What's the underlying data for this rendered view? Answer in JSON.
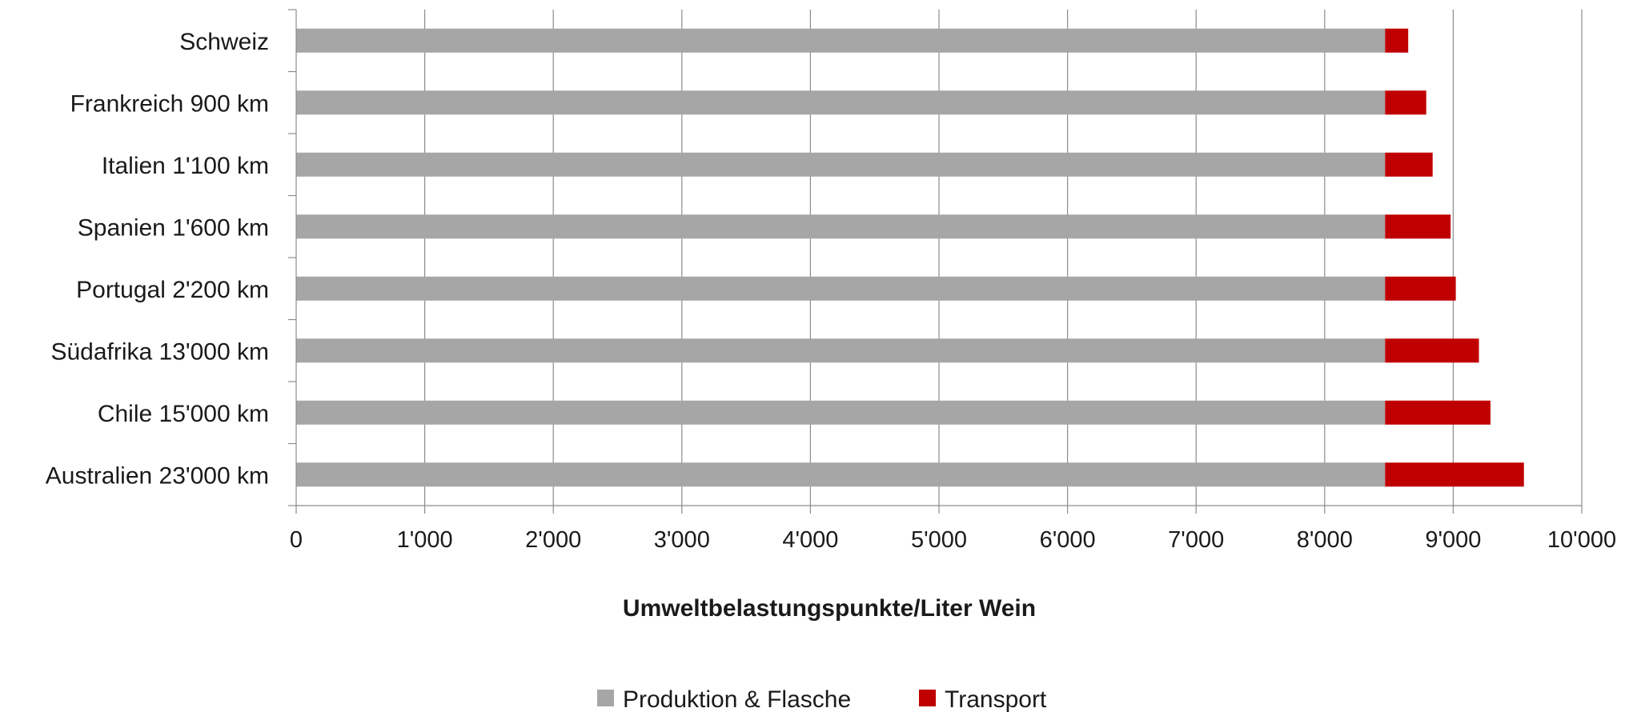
{
  "chart_data": {
    "type": "bar",
    "orientation": "horizontal",
    "stacked": true,
    "categories": [
      "Schweiz",
      "Frankreich 900 km",
      "Italien 1'100 km",
      "Spanien 1'600 km",
      "Portugal 2'200 km",
      "Südafrika 13'000 km",
      "Chile 15'000 km",
      "Australien 23'000 km"
    ],
    "series": [
      {
        "name": "Produktion & Flasche",
        "color": "#a6a6a6",
        "values": [
          8470,
          8470,
          8470,
          8470,
          8470,
          8470,
          8470,
          8470
        ]
      },
      {
        "name": "Transport",
        "color": "#c00000",
        "values": [
          180,
          320,
          370,
          510,
          550,
          730,
          820,
          1080
        ]
      }
    ],
    "xlim": [
      0,
      10000
    ],
    "xticks": [
      "0",
      "1'000",
      "2'000",
      "3'000",
      "4'000",
      "5'000",
      "6'000",
      "7'000",
      "8'000",
      "9'000",
      "10'000"
    ],
    "xlabel": "Umweltbelastungspunkte/Liter Wein",
    "ylabel": "",
    "title": "",
    "grid": "vertical",
    "legend_position": "bottom"
  }
}
